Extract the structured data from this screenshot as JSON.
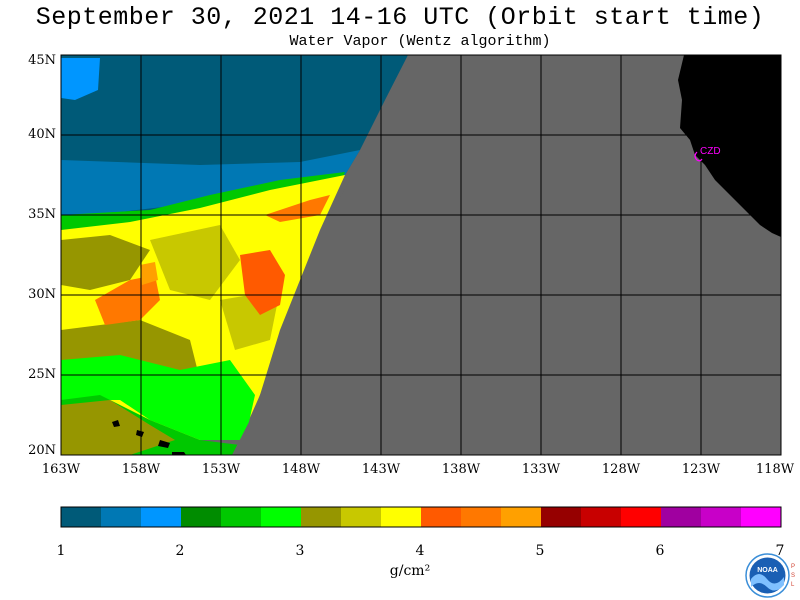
{
  "header": {
    "title": "September 30, 2021  14-16 UTC  (Orbit start time)",
    "subtitle": "Water Vapor (Wentz algorithm)"
  },
  "map": {
    "lat_labels": [
      "45N",
      "40N",
      "35N",
      "30N",
      "25N",
      "20N"
    ],
    "lon_labels": [
      "163W",
      "158W",
      "153W",
      "148W",
      "143W",
      "138W",
      "133W",
      "128W",
      "123W",
      "118W"
    ],
    "lat_range": [
      20,
      45
    ],
    "lon_range": [
      -163,
      -118
    ],
    "station_label": "CZD",
    "colors": {
      "no_data": "#666666",
      "land": "#000000",
      "grid": "#000000",
      "station": "#ff00ff"
    }
  },
  "colorbar": {
    "tick_labels": [
      "1",
      "2",
      "3",
      "4",
      "5",
      "6",
      "7"
    ],
    "units": "g/cm²",
    "colors": [
      "#005a78",
      "#0078b4",
      "#0096ff",
      "#008c00",
      "#00c800",
      "#00ff00",
      "#969600",
      "#c8c800",
      "#ffff00",
      "#ff5a00",
      "#ff7800",
      "#ffa000",
      "#960000",
      "#c80000",
      "#ff0000",
      "#a000a0",
      "#c800c8",
      "#ff00ff"
    ]
  },
  "logo": {
    "text": "NOAA",
    "side_text": [
      "P",
      "S",
      "L"
    ]
  }
}
